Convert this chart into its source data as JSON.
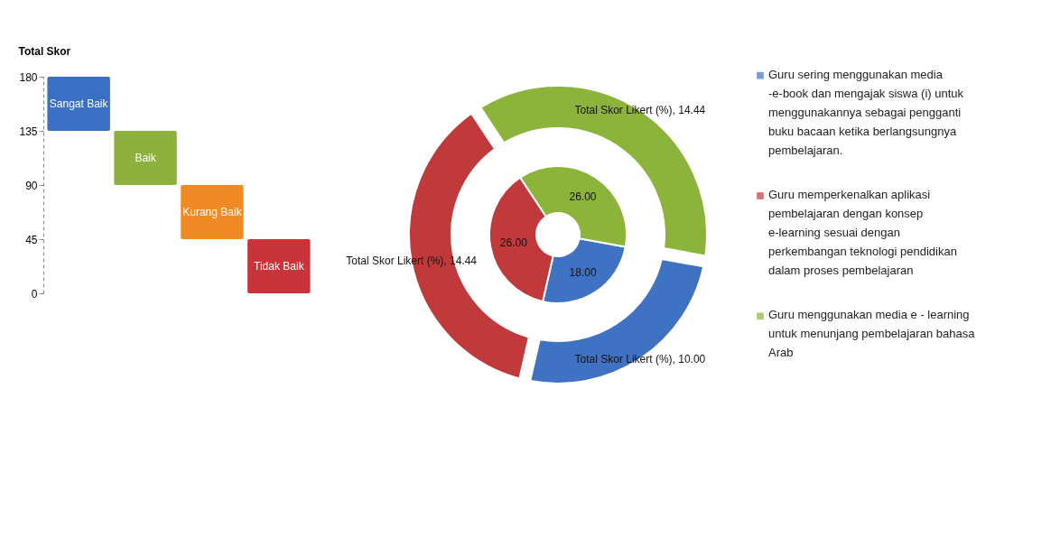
{
  "chart_data": [
    {
      "type": "bar",
      "ylabel": "Total Skor",
      "ylim": [
        0,
        180
      ],
      "yticks": [
        0,
        45,
        90,
        135,
        180
      ],
      "categories": [
        "Sangat Baik",
        "Baik",
        "Kurang Baik",
        "Tidak Baik"
      ],
      "values": [
        45,
        45,
        45,
        45
      ],
      "base": [
        135,
        90,
        45,
        0
      ],
      "colors": [
        "#3a6fc4",
        "#8db13c",
        "#f08a24",
        "#c9343a"
      ]
    },
    {
      "type": "donut",
      "categories": [
        "Guru sering menggunakan media -e-book dan mengajak siswa (i) untuk menggunakannya sebagai pengganti buku bacaan ketika berlangsungnya pembelajaran.",
        "Guru memperkenalkan aplikasi pembelajaran dengan konsep e-learning sesuai dengan perkembangan teknologi pendidikan dalam proses pembelajaran",
        "Guru menggunakan media e - learning untuk menunjang pembelajaran bahasa Arab"
      ],
      "colors": [
        "#3f72c2",
        "#c0393b",
        "#8cb33a"
      ],
      "series": [
        {
          "values": [
            18,
            26,
            26
          ],
          "value_labels": [
            "18.00",
            "26.00",
            "26.00"
          ]
        },
        {
          "values": [
            10,
            14.44,
            14.44
          ],
          "value_labels": [
            "Total Skor Likert (%), 10.00",
            "Total Skor Likert (%), 14.44",
            "Total Skor Likert (%), 14.44"
          ]
        }
      ],
      "legend": "right"
    }
  ]
}
